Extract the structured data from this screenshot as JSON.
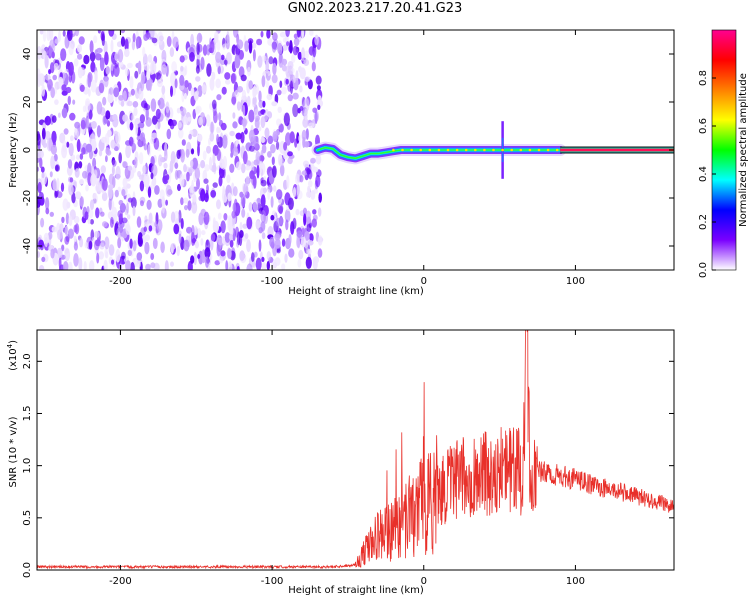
{
  "figure": {
    "title": "GN02.2023.217.20.41.G23"
  },
  "chart_data": [
    {
      "type": "heatmap",
      "title": "",
      "xlabel": "Height of straight line (km)",
      "ylabel": "Frequency (Hz)",
      "xlim": [
        -255,
        165
      ],
      "ylim": [
        -50,
        50
      ],
      "xticks": [
        -200,
        -100,
        0,
        100
      ],
      "yticks": [
        -40,
        -20,
        0,
        20,
        40
      ],
      "noise_region_x": [
        -255,
        -68
      ],
      "signal_trace": {
        "x": [
          -70,
          -65,
          -60,
          -55,
          -50,
          -45,
          -40,
          -35,
          -30,
          -25,
          -20,
          -15,
          -10,
          0,
          20,
          40,
          50,
          55,
          60,
          80,
          90
        ],
        "y": [
          0,
          1,
          0.5,
          -2,
          -3,
          -3.5,
          -2.5,
          -1.5,
          -1.5,
          -1,
          -0.5,
          0,
          0,
          0,
          0,
          0,
          0,
          0,
          0,
          0,
          0
        ]
      },
      "constant_band": {
        "x": [
          90,
          165
        ],
        "y": 0
      },
      "colorbar": {
        "label": "Normalized spectral amplitude",
        "range": [
          0,
          1
        ],
        "ticks": [
          "0.0",
          "0.2",
          "0.4",
          "0.6",
          "0.8"
        ],
        "colors": [
          "#ffffff",
          "#7a00ff",
          "#0000ff",
          "#00ffff",
          "#00ff00",
          "#ffff00",
          "#ff8000",
          "#ff0000",
          "#ff0090"
        ]
      },
      "grid": false
    },
    {
      "type": "line",
      "title": "",
      "xlabel": "Height of straight line (km)",
      "ylabel": "SNR (10 * v/v)",
      "scale_label": "(x10",
      "scale_exponent": "4",
      "xlim": [
        -255,
        165
      ],
      "ylim": [
        0,
        23000
      ],
      "xticks": [
        -200,
        -100,
        0,
        100
      ],
      "yticks": [
        "0.0",
        "0.5",
        "1.0",
        "1.5",
        "2.0"
      ],
      "ytick_values": [
        0,
        5000,
        10000,
        15000,
        20000
      ],
      "series": [
        {
          "color": "#e8302a",
          "x": [
            -255,
            -200,
            -150,
            -100,
            -60,
            -45,
            -40,
            -35,
            -30,
            -25,
            -20,
            -15,
            -10,
            -5,
            0,
            10,
            20,
            30,
            40,
            50,
            55,
            60,
            65,
            68,
            70,
            75,
            80,
            90,
            100,
            110,
            120,
            130,
            140,
            150,
            160,
            165
          ],
          "y": [
            300,
            300,
            300,
            300,
            300,
            500,
            1500,
            2500,
            3200,
            3600,
            4000,
            4600,
            5000,
            5600,
            6200,
            7500,
            8500,
            9000,
            9300,
            9500,
            9700,
            9400,
            9500,
            23000,
            9600,
            9500,
            9300,
            9000,
            8700,
            8200,
            7800,
            7500,
            7100,
            6700,
            6300,
            6000
          ]
        }
      ],
      "grid": false
    }
  ]
}
